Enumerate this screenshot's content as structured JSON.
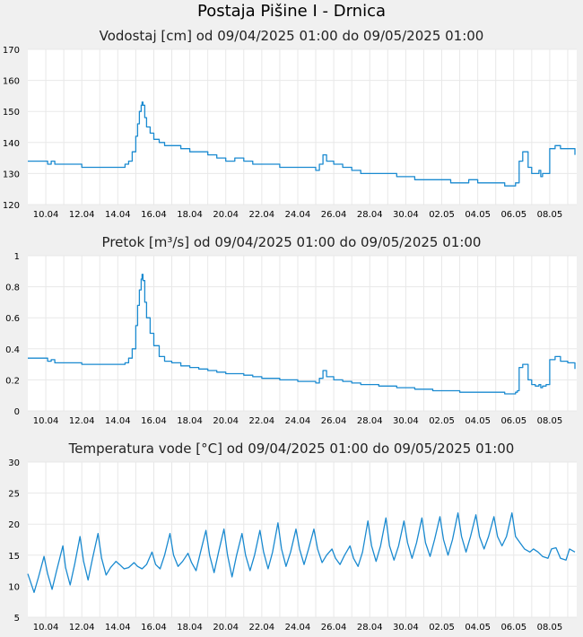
{
  "page": {
    "title": "Postaja Pišine I - Drnica"
  },
  "style": {
    "line_color": "#1a8ad0",
    "plot_background": "#ffffff",
    "grid_color": "#e8e8e8",
    "page_background": "#f0f0f0"
  },
  "chart_data": [
    {
      "type": "line",
      "title": "Vodostaj [cm] od 09/04/2025 01:00 do 09/05/2025 01:00",
      "ylim": [
        120,
        170
      ],
      "yticks": [
        "120",
        "130",
        "140",
        "150",
        "160",
        "170"
      ],
      "yvalues": [
        120,
        130,
        140,
        150,
        160,
        170
      ],
      "xlim": [
        9.0,
        39.5
      ],
      "xtick_labels": [
        "10.04",
        "12.04",
        "14.04",
        "16.04",
        "18.04",
        "20.04",
        "22.04",
        "24.04",
        "26.04",
        "28.04",
        "30.04",
        "02.05",
        "04.05",
        "06.05",
        "08.05"
      ],
      "xtick_positions": [
        10,
        12,
        14,
        16,
        18,
        20,
        22,
        24,
        26,
        28,
        30,
        32,
        34,
        36,
        38
      ],
      "grid": true,
      "series": [
        {
          "x": [
            9.0,
            10.0,
            10.1,
            10.3,
            10.5,
            11.0,
            11.5,
            12.0,
            13.0,
            14.0,
            14.4,
            14.6,
            14.8,
            15.0,
            15.1,
            15.2,
            15.3,
            15.35,
            15.4,
            15.5,
            15.6,
            15.8,
            16.0,
            16.3,
            16.6,
            17.0,
            17.5,
            18.0,
            18.5,
            19.0,
            19.5,
            20.0,
            20.5,
            21.0,
            21.5,
            22.0,
            22.5,
            23.0,
            23.5,
            24.0,
            24.5,
            25.0,
            25.2,
            25.4,
            25.6,
            26.0,
            26.5,
            27.0,
            27.5,
            28.0,
            28.5,
            29.0,
            29.5,
            30.0,
            30.5,
            31.0,
            31.5,
            32.0,
            32.5,
            33.0,
            33.5,
            34.0,
            34.5,
            35.0,
            35.5,
            36.0,
            36.1,
            36.2,
            36.3,
            36.5,
            36.8,
            37.0,
            37.2,
            37.4,
            37.5,
            37.6,
            37.8,
            38.0,
            38.3,
            38.6,
            39.0,
            39.4
          ],
          "y": [
            134,
            134,
            133,
            134,
            133,
            133,
            133,
            132,
            132,
            132,
            133,
            134,
            137,
            142,
            146,
            150,
            152,
            153,
            152,
            148,
            145,
            143,
            141,
            140,
            139,
            139,
            138,
            137,
            137,
            136,
            135,
            134,
            135,
            134,
            133,
            133,
            133,
            132,
            132,
            132,
            132,
            131,
            133,
            136,
            134,
            133,
            132,
            131,
            130,
            130,
            130,
            130,
            129,
            129,
            128,
            128,
            128,
            128,
            127,
            127,
            128,
            127,
            127,
            127,
            126,
            126,
            127,
            127,
            134,
            137,
            132,
            130,
            130,
            131,
            129,
            130,
            130,
            138,
            139,
            138,
            138,
            136
          ]
        }
      ]
    },
    {
      "type": "line",
      "title": "Pretok [m³/s] od 09/04/2025 01:00 do 09/05/2025 01:00",
      "ylim": [
        0,
        1
      ],
      "yticks": [
        "0",
        "0.2",
        "0.4",
        "0.6",
        "0.8",
        "1"
      ],
      "yvalues": [
        0,
        0.2,
        0.4,
        0.6,
        0.8,
        1
      ],
      "xlim": [
        9.0,
        39.5
      ],
      "xtick_labels": [
        "10.04",
        "12.04",
        "14.04",
        "16.04",
        "18.04",
        "20.04",
        "22.04",
        "24.04",
        "26.04",
        "28.04",
        "30.04",
        "02.05",
        "04.05",
        "06.05",
        "08.05"
      ],
      "xtick_positions": [
        10,
        12,
        14,
        16,
        18,
        20,
        22,
        24,
        26,
        28,
        30,
        32,
        34,
        36,
        38
      ],
      "grid": true,
      "series": [
        {
          "x": [
            9.0,
            10.0,
            10.1,
            10.3,
            10.5,
            11.0,
            11.5,
            12.0,
            13.0,
            14.0,
            14.4,
            14.6,
            14.8,
            15.0,
            15.1,
            15.2,
            15.3,
            15.35,
            15.4,
            15.5,
            15.6,
            15.8,
            16.0,
            16.3,
            16.6,
            17.0,
            17.5,
            18.0,
            18.5,
            19.0,
            19.5,
            20.0,
            20.5,
            21.0,
            21.5,
            22.0,
            22.5,
            23.0,
            23.5,
            24.0,
            24.5,
            25.0,
            25.2,
            25.4,
            25.6,
            26.0,
            26.5,
            27.0,
            27.5,
            28.0,
            28.5,
            29.0,
            29.5,
            30.0,
            30.5,
            31.0,
            31.5,
            32.0,
            32.5,
            33.0,
            33.5,
            34.0,
            34.5,
            35.0,
            35.5,
            36.0,
            36.1,
            36.2,
            36.3,
            36.5,
            36.8,
            37.0,
            37.2,
            37.4,
            37.5,
            37.6,
            37.8,
            38.0,
            38.3,
            38.6,
            39.0,
            39.4
          ],
          "y": [
            0.34,
            0.34,
            0.32,
            0.33,
            0.31,
            0.31,
            0.31,
            0.3,
            0.3,
            0.3,
            0.31,
            0.34,
            0.4,
            0.55,
            0.68,
            0.78,
            0.85,
            0.88,
            0.84,
            0.7,
            0.6,
            0.5,
            0.42,
            0.35,
            0.32,
            0.31,
            0.29,
            0.28,
            0.27,
            0.26,
            0.25,
            0.24,
            0.24,
            0.23,
            0.22,
            0.21,
            0.21,
            0.2,
            0.2,
            0.19,
            0.19,
            0.18,
            0.21,
            0.26,
            0.22,
            0.2,
            0.19,
            0.18,
            0.17,
            0.17,
            0.16,
            0.16,
            0.15,
            0.15,
            0.14,
            0.14,
            0.13,
            0.13,
            0.13,
            0.12,
            0.12,
            0.12,
            0.12,
            0.12,
            0.11,
            0.11,
            0.12,
            0.13,
            0.28,
            0.3,
            0.2,
            0.17,
            0.16,
            0.17,
            0.15,
            0.16,
            0.17,
            0.33,
            0.35,
            0.32,
            0.31,
            0.27
          ]
        }
      ]
    },
    {
      "type": "line",
      "title": "Temperatura vode [°C] od 09/04/2025 01:00 do 09/05/2025 01:00",
      "ylim": [
        5,
        30
      ],
      "yticks": [
        "5",
        "10",
        "15",
        "20",
        "25",
        "30"
      ],
      "yvalues": [
        5,
        10,
        15,
        20,
        25,
        30
      ],
      "xlim": [
        9.0,
        39.5
      ],
      "xtick_labels": [
        "10.04",
        "12.04",
        "14.04",
        "16.04",
        "18.04",
        "20.04",
        "22.04",
        "24.04",
        "26.04",
        "28.04",
        "30.04",
        "02.05",
        "04.05",
        "06.05",
        "08.05"
      ],
      "xtick_positions": [
        10,
        12,
        14,
        16,
        18,
        20,
        22,
        24,
        26,
        28,
        30,
        32,
        34,
        36,
        38
      ],
      "grid": true,
      "series": [
        {
          "x": [
            9.0,
            9.35,
            9.6,
            9.9,
            10.1,
            10.35,
            10.6,
            10.95,
            11.1,
            11.35,
            11.6,
            11.9,
            12.1,
            12.35,
            12.6,
            12.9,
            13.1,
            13.35,
            13.6,
            13.9,
            14.1,
            14.35,
            14.6,
            14.9,
            15.1,
            15.35,
            15.6,
            15.9,
            16.1,
            16.35,
            16.6,
            16.9,
            17.1,
            17.35,
            17.6,
            17.9,
            18.1,
            18.35,
            18.6,
            18.9,
            19.1,
            19.35,
            19.6,
            19.9,
            20.1,
            20.35,
            20.6,
            20.9,
            21.1,
            21.35,
            21.6,
            21.9,
            22.1,
            22.35,
            22.6,
            22.9,
            23.1,
            23.35,
            23.6,
            23.9,
            24.1,
            24.35,
            24.6,
            24.9,
            25.1,
            25.35,
            25.6,
            25.9,
            26.1,
            26.35,
            26.6,
            26.9,
            27.1,
            27.35,
            27.6,
            27.9,
            28.1,
            28.35,
            28.6,
            28.9,
            29.1,
            29.35,
            29.6,
            29.9,
            30.1,
            30.35,
            30.6,
            30.9,
            31.1,
            31.35,
            31.6,
            31.9,
            32.1,
            32.35,
            32.6,
            32.9,
            33.1,
            33.35,
            33.6,
            33.9,
            34.1,
            34.35,
            34.6,
            34.9,
            35.1,
            35.35,
            35.6,
            35.9,
            36.1,
            36.35,
            36.6,
            36.9,
            37.1,
            37.35,
            37.6,
            37.9,
            38.1,
            38.35,
            38.6,
            38.9,
            39.1,
            39.4
          ],
          "y": [
            12,
            9,
            11.5,
            14.8,
            12,
            9.5,
            12.5,
            16.5,
            13,
            10.2,
            13.5,
            18,
            14,
            11,
            14.5,
            18.5,
            14.5,
            11.8,
            13,
            14,
            13.5,
            12.8,
            13,
            13.8,
            13.2,
            12.8,
            13.5,
            15.5,
            13.5,
            12.8,
            15,
            18.5,
            15,
            13.2,
            14,
            15.3,
            13.8,
            12.5,
            15.5,
            19,
            15,
            12.2,
            15.5,
            19.2,
            15,
            11.5,
            15,
            18.5,
            15,
            12.5,
            15,
            19,
            15.5,
            12.8,
            15.5,
            20.2,
            16,
            13.2,
            15.5,
            19.2,
            16,
            13.5,
            16,
            19.2,
            16,
            13.8,
            15,
            16,
            14.5,
            13.5,
            15,
            16.5,
            14.5,
            13.2,
            15.5,
            20.5,
            16.5,
            14,
            16.5,
            21,
            16.5,
            14.2,
            16.5,
            20.5,
            17,
            14.5,
            17,
            21,
            17,
            14.8,
            17.5,
            21.2,
            17.5,
            15,
            17.5,
            21.8,
            18,
            15.5,
            18,
            21.5,
            18,
            16,
            18,
            21.2,
            18,
            16.5,
            18,
            21.8,
            18,
            17,
            16,
            15.5,
            16,
            15.5,
            14.8,
            14.5,
            16,
            16.2,
            14.5,
            14.2,
            16,
            15.5
          ]
        }
      ]
    }
  ]
}
